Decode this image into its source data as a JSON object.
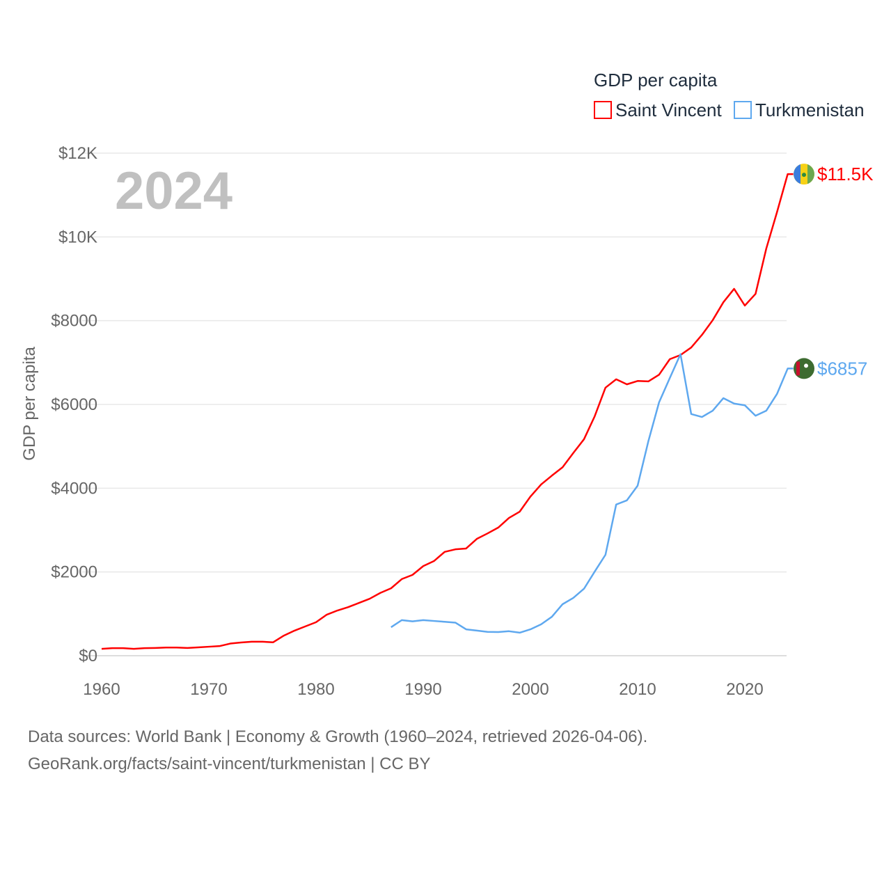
{
  "chart_data": {
    "type": "line",
    "year_label": "2024",
    "ylabel": "GDP per capita",
    "legend_title": "GDP per capita",
    "legend_placement": "top-right",
    "xlim": [
      1960,
      2024
    ],
    "ylim": [
      0,
      12000
    ],
    "x_ticks": [
      1960,
      1970,
      1980,
      1990,
      2000,
      2010,
      2020
    ],
    "x_tick_labels": [
      "1960",
      "1970",
      "1980",
      "1990",
      "2000",
      "2010",
      "2020"
    ],
    "y_ticks": [
      0,
      2000,
      4000,
      6000,
      8000,
      10000,
      12000
    ],
    "y_tick_labels": [
      "$0",
      "$2000",
      "$4000",
      "$6000",
      "$8000",
      "$10K",
      "$12K"
    ],
    "grid": true,
    "series": [
      {
        "name": "Saint Vincent",
        "color": "#ff0000",
        "end_label": "$11.5K",
        "start_year": 1960,
        "values": [
          165,
          180,
          180,
          165,
          180,
          185,
          195,
          195,
          185,
          200,
          215,
          230,
          290,
          315,
          335,
          335,
          320,
          480,
          600,
          700,
          800,
          980,
          1080,
          1160,
          1260,
          1360,
          1500,
          1610,
          1830,
          1930,
          2140,
          2260,
          2480,
          2540,
          2560,
          2790,
          2920,
          3060,
          3290,
          3440,
          3800,
          4090,
          4300,
          4500,
          4840,
          5170,
          5720,
          6400,
          6600,
          6480,
          6560,
          6550,
          6710,
          7080,
          7180,
          7360,
          7660,
          8010,
          8440,
          8760,
          8360,
          8640,
          9720,
          10590,
          11500
        ]
      },
      {
        "name": "Turkmenistan",
        "color": "#5ea8ef",
        "end_label": "$6857",
        "start_year": 1987,
        "values": [
          680,
          850,
          820,
          850,
          830,
          810,
          790,
          630,
          600,
          570,
          565,
          585,
          550,
          630,
          750,
          930,
          1230,
          1380,
          1600,
          2010,
          2410,
          3610,
          3710,
          4060,
          5120,
          6050,
          6630,
          7200,
          5770,
          5700,
          5850,
          6150,
          6020,
          5980,
          5730,
          5850,
          6250,
          6857
        ]
      }
    ]
  },
  "footer": {
    "line1": "Data sources: World Bank | Economy & Growth (1960–2024, retrieved 2026-04-06).",
    "line2": "GeoRank.org/facts/saint-vincent/turkmenistan | CC BY"
  }
}
